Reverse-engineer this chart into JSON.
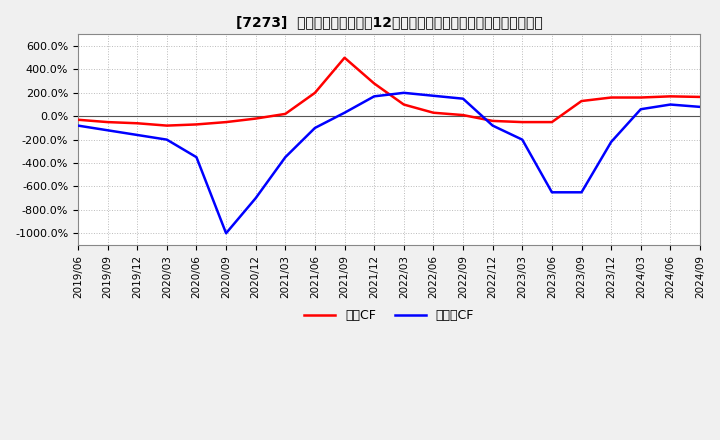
{
  "title": "[7273]  キャッシュフローの12か月移動合計の対前年同期増減率の推移",
  "legend_labels": [
    "営業CF",
    "フリーCF"
  ],
  "line_colors": [
    "#ff0000",
    "#0000ff"
  ],
  "background_color": "#f0f0f0",
  "plot_bg_color": "#ffffff",
  "ylim": [
    -1100,
    700
  ],
  "yticks": [
    600,
    400,
    200,
    0,
    -200,
    -400,
    -600,
    -800,
    -1000
  ],
  "ytick_labels": [
    "600.0%",
    "400.0%",
    "200.0%",
    "0.0%",
    "-200.0%",
    "-400.0%",
    "-600.0%",
    "-800.0%",
    "-1000.0%"
  ],
  "grid_color": "#bbbbbb",
  "operating_cf_values": [
    -30,
    -50,
    -60,
    -80,
    -70,
    -50,
    -20,
    20,
    200,
    500,
    280,
    100,
    30,
    10,
    -40,
    -50,
    -50,
    130,
    160,
    160,
    170,
    165
  ],
  "free_cf_values": [
    -80,
    -120,
    -160,
    -200,
    -350,
    -1000,
    -700,
    -350,
    -100,
    30,
    170,
    200,
    175,
    150,
    -80,
    -200,
    -650,
    -650,
    -220,
    60,
    100,
    80
  ],
  "xtick_labels": [
    "2019/06",
    "2019/09",
    "2019/12",
    "2020/03",
    "2020/06",
    "2020/09",
    "2020/12",
    "2021/03",
    "2021/06",
    "2021/09",
    "2021/12",
    "2022/03",
    "2022/06",
    "2022/09",
    "2022/12",
    "2023/03",
    "2023/06",
    "2023/09",
    "2023/12",
    "2024/03",
    "2024/06",
    "2024/09"
  ]
}
